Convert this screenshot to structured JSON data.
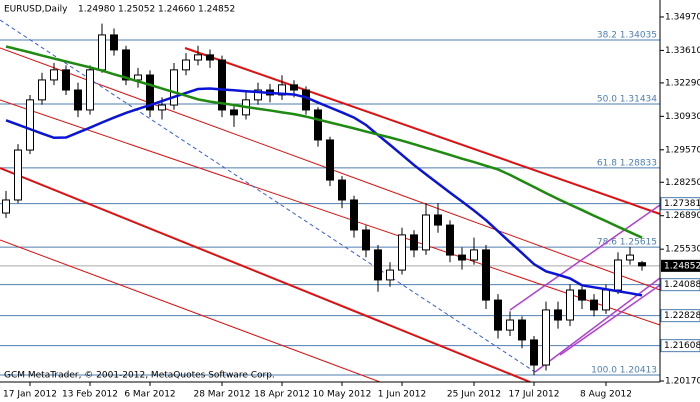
{
  "chart_data": {
    "type": "candlestick",
    "title": "EURUSD,Daily",
    "quote_labels": [
      "1.24980",
      "1.25052",
      "1.24660",
      "1.24852"
    ],
    "footer": "GCM MetaTrader, © 2001-2012, MetaQuotes Software Corp.",
    "categories": [
      null,
      null,
      "17 Jan 2012",
      null,
      null,
      null,
      null,
      "13 Feb 2012",
      null,
      null,
      null,
      null,
      "6 Mar 2012",
      null,
      null,
      null,
      null,
      null,
      "28 Mar 2012",
      null,
      null,
      null,
      null,
      "18 Apr 2012",
      null,
      null,
      null,
      null,
      "10 May 2012",
      null,
      null,
      null,
      null,
      "1 Jun 2012",
      null,
      null,
      null,
      null,
      null,
      "25 Jun 2012",
      null,
      null,
      null,
      null,
      "17 Jul 2012",
      null,
      null,
      null,
      null,
      null,
      "8 Aug 2012",
      null,
      null,
      null
    ],
    "ohlc": [
      [
        1.27,
        1.279,
        1.268,
        1.2753
      ],
      [
        1.2753,
        1.298,
        1.274,
        1.2956
      ],
      [
        1.2956,
        1.318,
        1.294,
        1.316
      ],
      [
        1.316,
        1.327,
        1.314,
        1.3241
      ],
      [
        1.3241,
        1.331,
        1.322,
        1.3282
      ],
      [
        1.3282,
        1.33,
        1.318,
        1.32
      ],
      [
        1.32,
        1.323,
        1.309,
        1.3119
      ],
      [
        1.3119,
        1.33,
        1.31,
        1.3282
      ],
      [
        1.3282,
        1.347,
        1.327,
        1.3424
      ],
      [
        1.3424,
        1.345,
        1.334,
        1.3363
      ],
      [
        1.3363,
        1.338,
        1.322,
        1.3241
      ],
      [
        1.3241,
        1.329,
        1.321,
        1.3261
      ],
      [
        1.3261,
        1.328,
        1.309,
        1.3119
      ],
      [
        1.3119,
        1.317,
        1.308,
        1.3139
      ],
      [
        1.3139,
        1.331,
        1.312,
        1.3282
      ],
      [
        1.3282,
        1.335,
        1.326,
        1.3322
      ],
      [
        1.3322,
        1.338,
        1.33,
        1.3343
      ],
      [
        1.3343,
        1.3365,
        1.329,
        1.3322
      ],
      [
        1.3322,
        1.334,
        1.309,
        1.3119
      ],
      [
        1.3119,
        1.314,
        1.305,
        1.3099
      ],
      [
        1.3099,
        1.319,
        1.308,
        1.316
      ],
      [
        1.316,
        1.323,
        1.314,
        1.32
      ],
      [
        1.32,
        1.3225,
        1.315,
        1.318
      ],
      [
        1.318,
        1.326,
        1.316,
        1.3221
      ],
      [
        1.3221,
        1.324,
        1.317,
        1.32
      ],
      [
        1.32,
        1.3215,
        1.31,
        1.3119
      ],
      [
        1.3119,
        1.313,
        1.297,
        1.2997
      ],
      [
        1.2997,
        1.301,
        1.281,
        1.2834
      ],
      [
        1.2834,
        1.285,
        1.272,
        1.2753
      ],
      [
        1.2753,
        1.277,
        1.26,
        1.2631
      ],
      [
        1.2631,
        1.265,
        1.252,
        1.255
      ],
      [
        1.255,
        1.257,
        1.238,
        1.2428
      ],
      [
        1.2428,
        1.25,
        1.24,
        1.2468
      ],
      [
        1.2468,
        1.264,
        1.245,
        1.2611
      ],
      [
        1.2611,
        1.263,
        1.252,
        1.255
      ],
      [
        1.255,
        1.274,
        1.253,
        1.2692
      ],
      [
        1.2692,
        1.274,
        1.262,
        1.2651
      ],
      [
        1.2651,
        1.267,
        1.25,
        1.2529
      ],
      [
        1.2529,
        1.256,
        1.247,
        1.2509
      ],
      [
        1.2509,
        1.26,
        1.249,
        1.255
      ],
      [
        1.255,
        1.257,
        1.231,
        1.2346
      ],
      [
        1.2346,
        1.237,
        1.219,
        1.2224
      ],
      [
        1.2224,
        1.23,
        1.22,
        1.2265
      ],
      [
        1.2265,
        1.228,
        1.215,
        1.2184
      ],
      [
        1.2184,
        1.22,
        1.2041,
        1.2082
      ],
      [
        1.2082,
        1.234,
        1.206,
        1.2306
      ],
      [
        1.2306,
        1.234,
        1.223,
        1.2265
      ],
      [
        1.2265,
        1.241,
        1.224,
        1.2387
      ],
      [
        1.2387,
        1.24,
        1.231,
        1.2346
      ],
      [
        1.2346,
        1.237,
        1.228,
        1.2306
      ],
      [
        1.2306,
        1.241,
        1.229,
        1.2387
      ],
      [
        1.2387,
        1.254,
        1.237,
        1.2509
      ],
      [
        1.2509,
        1.2562,
        1.249,
        1.2529
      ],
      [
        1.2498,
        1.25052,
        1.2466,
        1.24852
      ]
    ],
    "series": [
      {
        "color": "#0a14d8",
        "values": [
          1.3077,
          1.3059,
          1.3041,
          1.3023,
          1.3006,
          1.3007,
          1.3027,
          1.3047,
          1.3068,
          1.3088,
          1.3107,
          1.3123,
          1.3139,
          1.3155,
          1.3172,
          1.3188,
          1.3204,
          1.3206,
          1.3202,
          1.3199,
          1.3195,
          1.3192,
          1.3188,
          1.3185,
          1.3182,
          1.317,
          1.3149,
          1.3129,
          1.3109,
          1.3088,
          1.3058,
          1.3017,
          1.2977,
          1.2936,
          1.2895,
          1.2857,
          1.282,
          1.2783,
          1.2747,
          1.271,
          1.2671,
          1.2626,
          1.2581,
          1.2537,
          1.2492,
          1.2463,
          1.2449,
          1.2434,
          1.2406,
          1.2398,
          1.239,
          1.2382,
          1.2374,
          1.2365
        ]
      },
      {
        "color": "#1e8a10",
        "values": [
          1.3377,
          1.3365,
          1.3353,
          1.334,
          1.3328,
          1.3316,
          1.3304,
          1.3292,
          1.3279,
          1.3264,
          1.325,
          1.3235,
          1.3221,
          1.3206,
          1.3191,
          1.3177,
          1.3162,
          1.3153,
          1.3146,
          1.3139,
          1.3131,
          1.3124,
          1.3117,
          1.3109,
          1.3102,
          1.3092,
          1.308,
          1.3068,
          1.3056,
          1.3044,
          1.3031,
          1.3019,
          1.3007,
          1.2994,
          1.298,
          1.2965,
          1.2951,
          1.2936,
          1.2921,
          1.2907,
          1.2892,
          1.2877,
          1.2855,
          1.283,
          1.2806,
          1.2781,
          1.2757,
          1.2734,
          1.2712,
          1.2689,
          1.2667,
          1.2644,
          1.2622,
          1.26
        ]
      }
    ],
    "ylim": [
      1.2013,
      1.3566
    ],
    "yticks": [
      {
        "value": 1.3497,
        "label": "1.34970"
      },
      {
        "value": 1.3361,
        "label": "1.33610"
      },
      {
        "value": 1.3229,
        "label": "1.32290"
      },
      {
        "value": 1.3093,
        "label": "1.30930"
      },
      {
        "value": 1.2957,
        "label": "1.29570"
      },
      {
        "value": 1.2825,
        "label": "1.28250"
      },
      {
        "value": 1.2689,
        "label": "1.26890"
      },
      {
        "value": 1.2553,
        "label": "1.25530"
      },
      {
        "value": 1.2017,
        "label": "1.20170"
      }
    ],
    "fib_levels": [
      {
        "value": 1.34035,
        "label": "38.2 1.34035"
      },
      {
        "value": 1.31434,
        "label": "50.0 1.31434"
      },
      {
        "value": 1.28833,
        "label": "61.8 1.28833"
      },
      {
        "value": 1.25615,
        "label": "78.6 1.25615"
      },
      {
        "value": 1.20413,
        "label": "100.0 1.20413"
      }
    ],
    "price_boxes": [
      {
        "value": 1.27381,
        "label": "1.27381"
      },
      {
        "value": 1.24088,
        "label": "1.24088"
      },
      {
        "value": 1.22828,
        "label": "1.22828"
      },
      {
        "value": 1.21608,
        "label": "1.21608"
      }
    ],
    "current_price": {
      "value": 1.24852,
      "label": "1.24852"
    }
  }
}
